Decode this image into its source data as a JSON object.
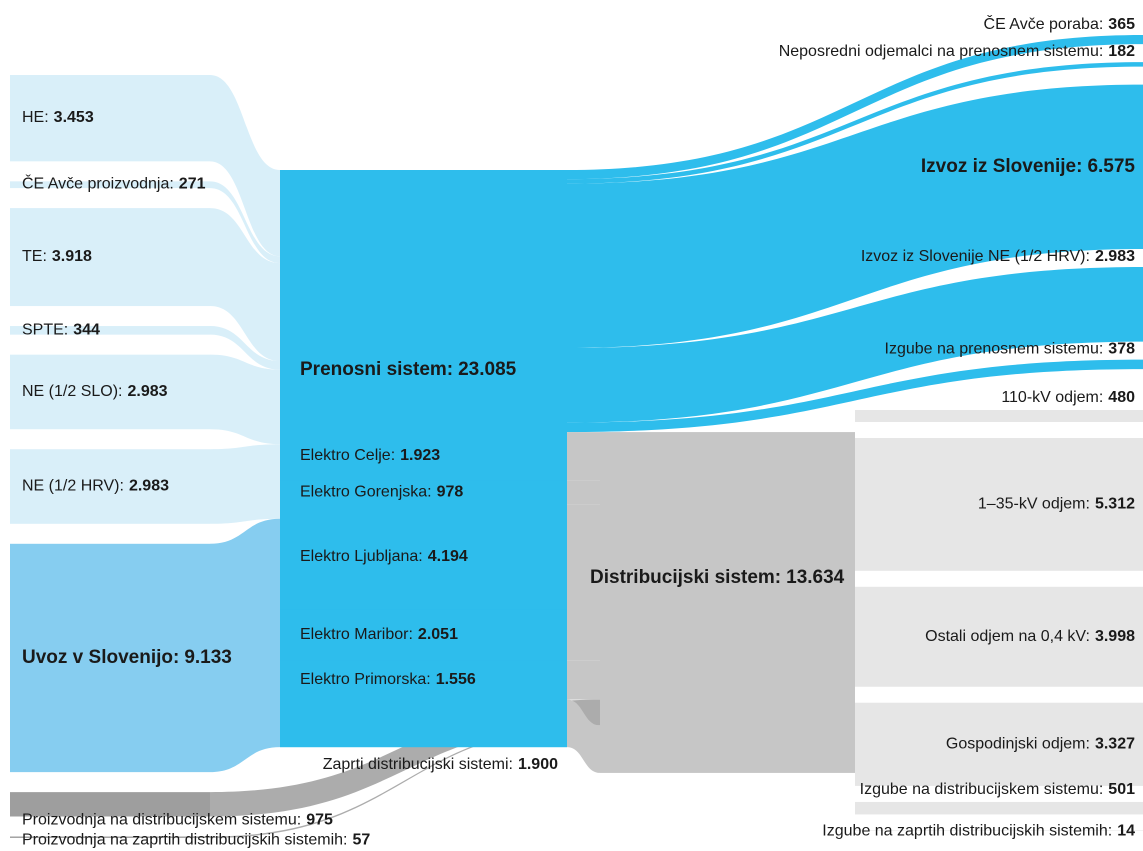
{
  "chart_data": {
    "type": "sankey",
    "nodes": [
      {
        "name": "HE:",
        "value": 3453,
        "value_label": "3.453",
        "color": "#d9eff9"
      },
      {
        "name": "ČE Avče proizvodnja:",
        "value": 271,
        "value_label": "271",
        "color": "#d9eff9"
      },
      {
        "name": "TE:",
        "value": 3918,
        "value_label": "3.918",
        "color": "#d9eff9"
      },
      {
        "name": "SPTE:",
        "value": 344,
        "value_label": "344",
        "color": "#d9eff9"
      },
      {
        "name": "NE (1/2 SLO):",
        "value": 2983,
        "value_label": "2.983",
        "color": "#d9eff9"
      },
      {
        "name": "NE (1/2 HRV):",
        "value": 2983,
        "value_label": "2.983",
        "color": "#d9eff9"
      },
      {
        "name": "Uvoz v Slovenijo:",
        "value": 9133,
        "value_label": "9.133",
        "color": "#86cdf0"
      },
      {
        "name": "Proizvodnja na distribucijskem sistemu:",
        "value": 975,
        "value_label": "975",
        "color": "#9e9e9e"
      },
      {
        "name": "Proizvodnja na zaprtih distribucijskih sistemih:",
        "value": 57,
        "value_label": "57",
        "color": "#9e9e9e"
      },
      {
        "name": "Prenosni sistem:",
        "value": 23085,
        "value_label": "23.085",
        "color": "#2ebdec"
      },
      {
        "name": "ČE Avče poraba:",
        "value": 365,
        "value_label": "365",
        "color": "#2ebdec"
      },
      {
        "name": "Neposredni odjemalci na prenosnem sistemu:",
        "value": 182,
        "value_label": "182",
        "color": "#2ebdec"
      },
      {
        "name": "Izvoz iz Slovenije:",
        "value": 6575,
        "value_label": "6.575",
        "color": "#2ebdec"
      },
      {
        "name": "Izvoz iz Slovenije NE (1/2 HRV):",
        "value": 2983,
        "value_label": "2.983",
        "color": "#2ebdec"
      },
      {
        "name": "Izgube na prenosnem sistemu:",
        "value": 378,
        "value_label": "378",
        "color": "#2ebdec"
      },
      {
        "name": "Elektro Celje:",
        "value": 1923,
        "value_label": "1.923",
        "color": "#2ebdec"
      },
      {
        "name": "Elektro Gorenjska:",
        "value": 978,
        "value_label": "978",
        "color": "#2ebdec"
      },
      {
        "name": "Elektro Ljubljana:",
        "value": 4194,
        "value_label": "4.194",
        "color": "#2ebdec"
      },
      {
        "name": "Elektro Maribor:",
        "value": 2051,
        "value_label": "2.051",
        "color": "#2ebdec"
      },
      {
        "name": "Elektro Primorska:",
        "value": 1556,
        "value_label": "1.556",
        "color": "#2ebdec"
      },
      {
        "name": "Zaprti distribucijski sistemi:",
        "value": 1900,
        "value_label": "1.900",
        "color": "#2ebdec"
      },
      {
        "name": "Distribucijski sistem:",
        "value": 13634,
        "value_label": "13.634",
        "color": "#c6c6c6"
      },
      {
        "name": "110-kV odjem:",
        "value": 480,
        "value_label": "480",
        "color": "#e6e6e6"
      },
      {
        "name": "1–35-kV odjem:",
        "value": 5312,
        "value_label": "5.312",
        "color": "#e6e6e6"
      },
      {
        "name": "Ostali odjem na 0,4 kV:",
        "value": 3998,
        "value_label": "3.998",
        "color": "#e6e6e6"
      },
      {
        "name": "Gospodinjski odjem:",
        "value": 3327,
        "value_label": "3.327",
        "color": "#e6e6e6"
      },
      {
        "name": "Izgube na distribucijskem sistemu:",
        "value": 501,
        "value_label": "501",
        "color": "#e6e6e6"
      },
      {
        "name": "Izgube na zaprtih distribucijskih sistemih:",
        "value": 14,
        "value_label": "14",
        "color": "#e6e6e6"
      }
    ],
    "links": [
      {
        "source": 0,
        "target": 9,
        "value": 3453
      },
      {
        "source": 1,
        "target": 9,
        "value": 271
      },
      {
        "source": 2,
        "target": 9,
        "value": 3918
      },
      {
        "source": 3,
        "target": 9,
        "value": 344
      },
      {
        "source": 4,
        "target": 9,
        "value": 2983
      },
      {
        "source": 5,
        "target": 9,
        "value": 2983
      },
      {
        "source": 6,
        "target": 9,
        "value": 9133
      },
      {
        "source": 9,
        "target": 10,
        "value": 365
      },
      {
        "source": 9,
        "target": 11,
        "value": 182
      },
      {
        "source": 9,
        "target": 12,
        "value": 6575
      },
      {
        "source": 9,
        "target": 13,
        "value": 2983
      },
      {
        "source": 9,
        "target": 14,
        "value": 378
      },
      {
        "source": 15,
        "target": 21,
        "value": 1923
      },
      {
        "source": 16,
        "target": 21,
        "value": 978
      },
      {
        "source": 17,
        "target": 21,
        "value": 4194
      },
      {
        "source": 18,
        "target": 21,
        "value": 2051
      },
      {
        "source": 19,
        "target": 21,
        "value": 1556
      },
      {
        "source": 7,
        "target": 21,
        "value": 975
      },
      {
        "source": 8,
        "target": 21,
        "value": 57
      },
      {
        "source": 20,
        "target": 21,
        "value": 1900
      },
      {
        "source": 21,
        "target": 22,
        "value": 480
      },
      {
        "source": 21,
        "target": 23,
        "value": 5312
      },
      {
        "source": 21,
        "target": 24,
        "value": 3998
      },
      {
        "source": 21,
        "target": 25,
        "value": 3327
      },
      {
        "source": 21,
        "target": 26,
        "value": 501
      },
      {
        "source": 21,
        "target": 27,
        "value": 14
      }
    ]
  }
}
